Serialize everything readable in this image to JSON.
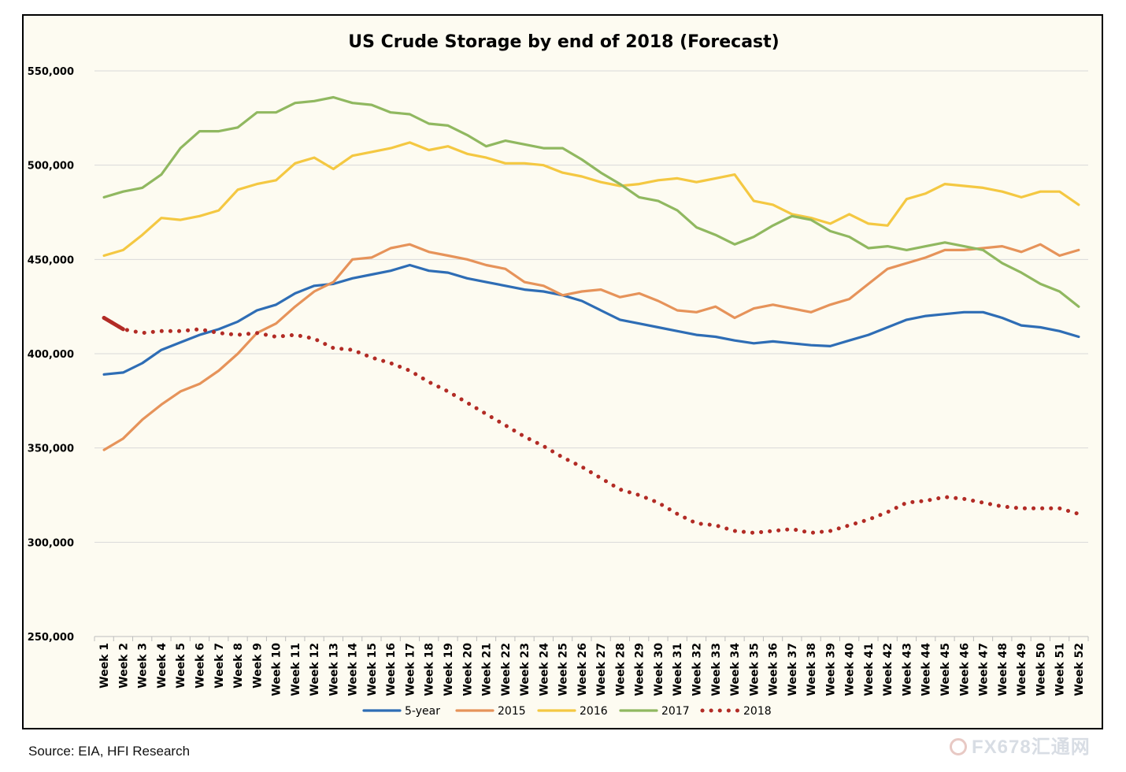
{
  "source": "Source:  EIA, HFI Research",
  "watermark": "FX678汇通网",
  "chart_data": {
    "type": "line",
    "title": "US Crude Storage by end of 2018 (Forecast)",
    "xlabel": "",
    "ylabel": "",
    "ylim": [
      250000,
      550000
    ],
    "yticks": [
      250000,
      300000,
      350000,
      400000,
      450000,
      500000,
      550000
    ],
    "ytick_labels": [
      "250,000",
      "300,000",
      "350,000",
      "400,000",
      "450,000",
      "500,000",
      "550,000"
    ],
    "grid": true,
    "legend_position": "bottom",
    "categories": [
      "Week 1",
      "Week 2",
      "Week 3",
      "Week 4",
      "Week 5",
      "Week 6",
      "Week 7",
      "Week 8",
      "Week 9",
      "Week 10",
      "Week 11",
      "Week 12",
      "Week 13",
      "Week 14",
      "Week 15",
      "Week 16",
      "Week 17",
      "Week 18",
      "Week 19",
      "Week 20",
      "Week 21",
      "Week 22",
      "Week 23",
      "Week 24",
      "Week 25",
      "Week 26",
      "Week 27",
      "Week 28",
      "Week 29",
      "Week 30",
      "Week 31",
      "Week 32",
      "Week 33",
      "Week 34",
      "Week 35",
      "Week 36",
      "Week 37",
      "Week 38",
      "Week 39",
      "Week 40",
      "Week 41",
      "Week 42",
      "Week 43",
      "Week 44",
      "Week 45",
      "Week 46",
      "Week 47",
      "Week 48",
      "Week 49",
      "Week 50",
      "Week 51",
      "Week 52"
    ],
    "series": [
      {
        "name": "5-year",
        "color": "#2e6db5",
        "style": "solid",
        "values": [
          389000,
          390000,
          395000,
          402000,
          406000,
          410000,
          413000,
          417000,
          423000,
          426000,
          432000,
          436000,
          437000,
          440000,
          442000,
          444000,
          447000,
          444000,
          443000,
          440000,
          438000,
          436000,
          434000,
          433000,
          431000,
          428000,
          423000,
          418000,
          416000,
          414000,
          412000,
          410000,
          409000,
          407000,
          405500,
          406500,
          405500,
          404500,
          404000,
          407000,
          410000,
          414000,
          418000,
          420000,
          421000,
          422000,
          422000,
          419000,
          415000,
          414000,
          412000,
          409000
        ]
      },
      {
        "name": "2015",
        "color": "#e6935a",
        "style": "solid",
        "values": [
          349000,
          355000,
          365000,
          373000,
          380000,
          384000,
          391000,
          400000,
          411000,
          416000,
          425000,
          433000,
          438000,
          450000,
          451000,
          456000,
          458000,
          454000,
          452000,
          450000,
          447000,
          445000,
          438000,
          436000,
          431000,
          433000,
          434000,
          430000,
          432000,
          428000,
          423000,
          422000,
          425000,
          419000,
          424000,
          426000,
          424000,
          422000,
          426000,
          429000,
          437000,
          445000,
          448000,
          451000,
          455000,
          455000,
          456000,
          457000,
          454000,
          458000,
          452000,
          455000
        ]
      },
      {
        "name": "2016",
        "color": "#f4c842",
        "style": "solid",
        "values": [
          452000,
          455000,
          463000,
          472000,
          471000,
          473000,
          476000,
          487000,
          490000,
          492000,
          501000,
          504000,
          498000,
          505000,
          507000,
          509000,
          512000,
          508000,
          510000,
          506000,
          504000,
          501000,
          501000,
          500000,
          496000,
          494000,
          491000,
          489000,
          490000,
          492000,
          493000,
          491000,
          493000,
          495000,
          481000,
          479000,
          474000,
          472000,
          469000,
          474000,
          469000,
          468000,
          482000,
          485000,
          490000,
          489000,
          488000,
          486000,
          483000,
          486000,
          486000,
          479000
        ]
      },
      {
        "name": "2017",
        "color": "#90b860",
        "style": "solid",
        "values": [
          483000,
          486000,
          488000,
          495000,
          509000,
          518000,
          518000,
          520000,
          528000,
          528000,
          533000,
          534000,
          536000,
          533000,
          532000,
          528000,
          527000,
          522000,
          521000,
          516000,
          510000,
          513000,
          511000,
          509000,
          509000,
          503000,
          496000,
          490000,
          483000,
          481000,
          476000,
          467000,
          463000,
          458000,
          462000,
          468000,
          473000,
          471000,
          465000,
          462000,
          456000,
          457000,
          455000,
          457000,
          459000,
          457000,
          455000,
          448000,
          443000,
          437000,
          433000,
          425000
        ]
      },
      {
        "name": "2018",
        "color": "#b22b25",
        "style": "dotted",
        "values": [
          419000,
          413000,
          411000,
          412000,
          412000,
          413000,
          411000,
          410000,
          411000,
          409000,
          410000,
          408000,
          403000,
          402000,
          398000,
          395000,
          391000,
          385000,
          380000,
          374000,
          368000,
          362000,
          356000,
          351000,
          345000,
          340000,
          334000,
          328000,
          325000,
          321000,
          315000,
          310000,
          309000,
          306000,
          305000,
          306000,
          307000,
          305000,
          306000,
          309000,
          312000,
          316000,
          321000,
          322000,
          324000,
          323000,
          321000,
          319000,
          318000,
          318000,
          318000,
          315000
        ]
      }
    ],
    "actual_2018_weeks": 2
  }
}
